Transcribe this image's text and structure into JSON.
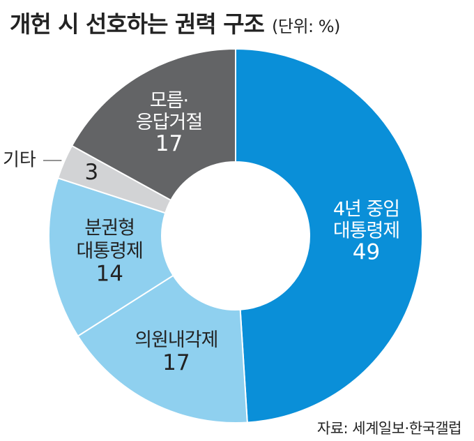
{
  "header": {
    "title": "개헌 시 선호하는 권력 구조",
    "unit": "(단위: %)"
  },
  "source": "자료: 세계일보·한국갤럽",
  "chart_data": {
    "type": "pie",
    "title": "개헌 시 선호하는 권력 구조",
    "unit": "%",
    "categories": [
      "4년 중임 대통령제",
      "의원내각제",
      "분권형 대통령제",
      "기타",
      "모름·응답거절"
    ],
    "values": [
      49,
      17,
      14,
      3,
      17
    ],
    "label_lines": [
      [
        "4년 중임",
        "대통령제"
      ],
      [
        "의원내각제"
      ],
      [
        "분권형",
        "대통령제"
      ],
      [],
      [
        "모름·",
        "응답거절"
      ]
    ],
    "outside_labels": [
      "",
      "",
      "",
      "기타",
      ""
    ],
    "colors": [
      "#0a8fd8",
      "#8fd0ef",
      "#8fd0ef",
      "#d2d3d5",
      "#636466"
    ],
    "label_colors": [
      "#ffffff",
      "#222222",
      "#222222",
      "#222222",
      "#ffffff"
    ],
    "hole": true,
    "legend": "none"
  }
}
